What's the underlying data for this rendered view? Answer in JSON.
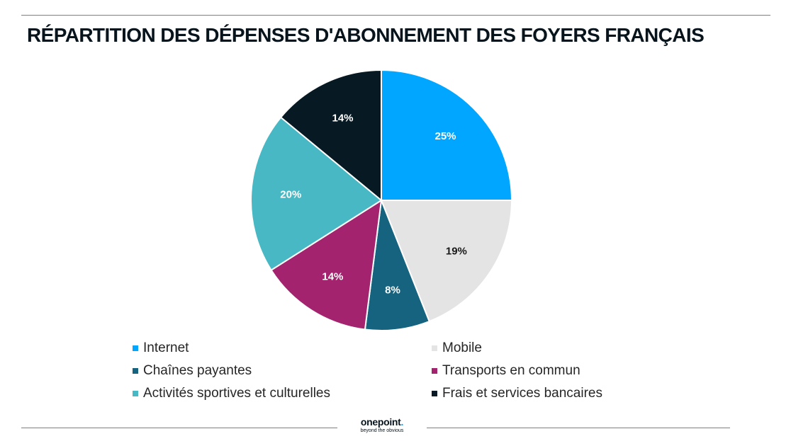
{
  "header": {
    "title": "RÉPARTITION DES DÉPENSES D'ABONNEMENT DES FOYERS FRANÇAIS"
  },
  "chart_data": {
    "type": "pie",
    "title": "RÉPARTITION DES DÉPENSES D'ABONNEMENT DES FOYERS FRANÇAIS",
    "legend_position": "bottom",
    "slices": [
      {
        "label": "Internet",
        "value": 25,
        "display": "25%",
        "color": "#00a6ff",
        "label_color": "#ffffff"
      },
      {
        "label": "Mobile",
        "value": 19,
        "display": "19%",
        "color": "#e4e4e4",
        "label_color": "#1a1a1a"
      },
      {
        "label": "Chaînes payantes",
        "value": 8,
        "display": "8%",
        "color": "#15637f",
        "label_color": "#ffffff"
      },
      {
        "label": "Transports en commun",
        "value": 14,
        "display": "14%",
        "color": "#a3236e",
        "label_color": "#ffffff"
      },
      {
        "label": "Activités sportives et culturelles",
        "value": 20,
        "display": "20%",
        "color": "#48b9c4",
        "label_color": "#ffffff"
      },
      {
        "label": "Frais et services bancaires",
        "value": 14,
        "display": "14%",
        "color": "#071922",
        "label_color": "#ffffff"
      }
    ]
  },
  "footer": {
    "brand": "onepoint",
    "brand_dot": ".",
    "tagline": "beyond the obvious"
  }
}
